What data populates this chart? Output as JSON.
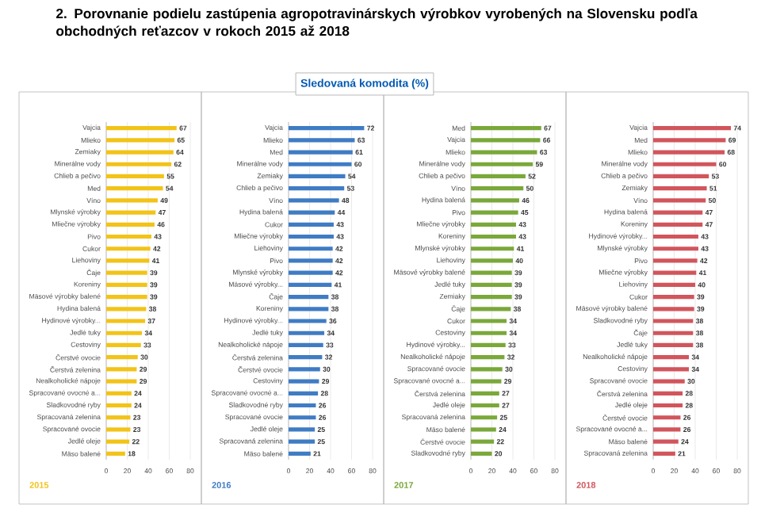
{
  "chart_data": [
    {
      "type": "bar",
      "orientation": "horizontal",
      "title": "2. Porovnanie podielu zastúpenia agropotravinárskych výrobkov vyrobených na Slovensku podľa obchodných reťazcov v rokoch 2015 až 2018",
      "annotations": [
        "2015"
      ],
      "color": "#f2c318",
      "xlim": [
        0,
        80
      ],
      "xticks": [
        0,
        20,
        40,
        60,
        80
      ],
      "grid": "x",
      "data_labels": true,
      "categories": [
        "Vajcia",
        "Mlieko",
        "Zemiaky",
        "Minerálne vody",
        "Chlieb a pečivo",
        "Med",
        "Víno",
        "Mlynské výrobky",
        "Mliečne výrobky",
        "Pivo",
        "Cukor",
        "Liehoviny",
        "Čaje",
        "Koreniny",
        "Mäsové výrobky balené",
        "Hydina balená",
        "Hydinové výrobky...",
        "Jedlé tuky",
        "Cestoviny",
        "Čerstvé ovocie",
        "Čerstvá zelenina",
        "Nealkoholické nápoje",
        "Spracované ovocné a...",
        "Sladkovodné ryby",
        "Spracovaná zelenina",
        "Spracované ovocie",
        "Jedlé oleje",
        "Mäso balené"
      ],
      "values": [
        67,
        65,
        64,
        62,
        55,
        54,
        49,
        47,
        46,
        43,
        42,
        41,
        39,
        39,
        39,
        38,
        37,
        34,
        33,
        30,
        29,
        29,
        24,
        24,
        23,
        23,
        22,
        18
      ]
    },
    {
      "type": "bar",
      "orientation": "horizontal",
      "subtitle": "Sledovaná komodita (%)",
      "annotations": [
        "2016"
      ],
      "color": "#3f7cc4",
      "xlim": [
        0,
        80
      ],
      "xticks": [
        0,
        20,
        40,
        60,
        80
      ],
      "grid": "x",
      "data_labels": true,
      "categories": [
        "Vajcia",
        "Mlieko",
        "Med",
        "Minerálne vody",
        "Zemiaky",
        "Chlieb a pečivo",
        "Víno",
        "Hydina balená",
        "Cukor",
        "Mliečne výrobky",
        "Liehoviny",
        "Pivo",
        "Mlynské výrobky",
        "Mäsové výrobky...",
        "Čaje",
        "Koreniny",
        "Hydinové výrobky...",
        "Jedlé tuky",
        "Nealkoholické nápoje",
        "Čerstvá zelenina",
        "Čerstvé ovocie",
        "Cestoviny",
        "Spracované ovocné a...",
        "Sladkovodné ryby",
        "Spracované ovocie",
        "Jedlé oleje",
        "Spracovaná zelenina",
        "Mäso balené"
      ],
      "values": [
        72,
        63,
        61,
        60,
        54,
        53,
        48,
        44,
        43,
        43,
        42,
        42,
        42,
        41,
        38,
        38,
        36,
        34,
        33,
        32,
        30,
        29,
        28,
        26,
        26,
        25,
        25,
        21
      ]
    },
    {
      "type": "bar",
      "orientation": "horizontal",
      "annotations": [
        "2017"
      ],
      "color": "#7aa83a",
      "xlim": [
        0,
        80
      ],
      "xticks": [
        0,
        20,
        40,
        60,
        80
      ],
      "grid": "x",
      "data_labels": true,
      "categories": [
        "Med",
        "Vajcia",
        "Mlieko",
        "Minerálne vody",
        "Chlieb a pečivo",
        "Víno",
        "Hydina balená",
        "Pivo",
        "Mliečne výrobky",
        "Koreniny",
        "Mlynské výrobky",
        "Liehoviny",
        "Mäsové výrobky balené",
        "Jedlé tuky",
        "Zemiaky",
        "Čaje",
        "Cukor",
        "Cestoviny",
        "Hydinové výrobky...",
        "Nealkoholické nápoje",
        "Spracované ovocie",
        "Spracované ovocné a...",
        "Čerstvá zelenina",
        "Jedlé oleje",
        "Spracovaná zelenina",
        "Mäso balené",
        "Čerstvé ovocie",
        "Sladkovodné ryby"
      ],
      "values": [
        67,
        66,
        63,
        59,
        52,
        50,
        46,
        45,
        43,
        43,
        41,
        40,
        39,
        39,
        39,
        38,
        34,
        34,
        33,
        32,
        30,
        29,
        27,
        27,
        25,
        24,
        22,
        20
      ]
    },
    {
      "type": "bar",
      "orientation": "horizontal",
      "annotations": [
        "2018"
      ],
      "color": "#d2555c",
      "xlim": [
        0,
        80
      ],
      "xticks": [
        0,
        20,
        40,
        60,
        80
      ],
      "grid": "x",
      "data_labels": true,
      "categories": [
        "Vajcia",
        "Med",
        "Mlieko",
        "Minerálne vody",
        "Chlieb a pečivo",
        "Zemiaky",
        "Víno",
        "Hydina balená",
        "Koreniny",
        "Hydinové výrobky...",
        "Mlynské výrobky",
        "Pivo",
        "Mliečne výrobky",
        "Liehoviny",
        "Cukor",
        "Mäsové výrobky balené",
        "Sladkovodné ryby",
        "Čaje",
        "Jedlé tuky",
        "Nealkoholické nápoje",
        "Cestoviny",
        "Spracované ovocie",
        "Čerstvá zelenina",
        "Jedlé oleje",
        "Čerstvé ovocie",
        "Spracované ovocné a...",
        "Mäso balené",
        "Spracovaná zelenina"
      ],
      "values": [
        74,
        69,
        68,
        60,
        53,
        51,
        50,
        47,
        47,
        43,
        43,
        42,
        41,
        40,
        39,
        39,
        38,
        38,
        38,
        34,
        34,
        30,
        28,
        28,
        26,
        26,
        24,
        21
      ]
    }
  ]
}
